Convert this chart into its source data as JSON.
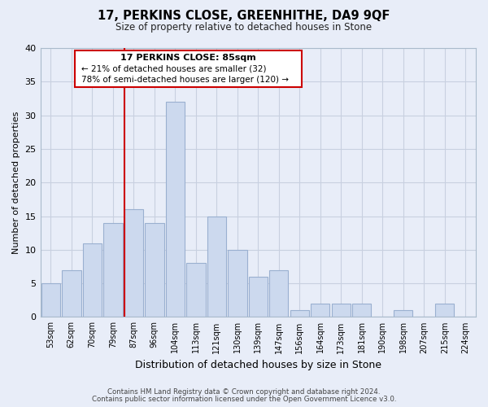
{
  "title": "17, PERKINS CLOSE, GREENHITHE, DA9 9QF",
  "subtitle": "Size of property relative to detached houses in Stone",
  "xlabel": "Distribution of detached houses by size in Stone",
  "ylabel": "Number of detached properties",
  "categories": [
    "53sqm",
    "62sqm",
    "70sqm",
    "79sqm",
    "87sqm",
    "96sqm",
    "104sqm",
    "113sqm",
    "121sqm",
    "130sqm",
    "139sqm",
    "147sqm",
    "156sqm",
    "164sqm",
    "173sqm",
    "181sqm",
    "190sqm",
    "198sqm",
    "207sqm",
    "215sqm",
    "224sqm"
  ],
  "values": [
    5,
    7,
    11,
    14,
    16,
    14,
    32,
    8,
    15,
    10,
    6,
    7,
    1,
    2,
    2,
    2,
    0,
    1,
    0,
    2,
    0
  ],
  "bar_color": "#ccd9ee",
  "bar_edge_color": "#9ab0d0",
  "highlight_index": 4,
  "highlight_color": "#cc0000",
  "ylim": [
    0,
    40
  ],
  "yticks": [
    0,
    5,
    10,
    15,
    20,
    25,
    30,
    35,
    40
  ],
  "annotation_title": "17 PERKINS CLOSE: 85sqm",
  "annotation_line1": "← 21% of detached houses are smaller (32)",
  "annotation_line2": "78% of semi-detached houses are larger (120) →",
  "footer1": "Contains HM Land Registry data © Crown copyright and database right 2024.",
  "footer2": "Contains public sector information licensed under the Open Government Licence v3.0.",
  "bg_color": "#e8edf8",
  "plot_bg_color": "#e8edf8",
  "grid_color": "#c8d0e0"
}
